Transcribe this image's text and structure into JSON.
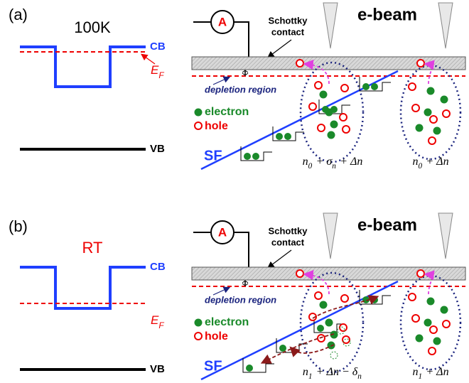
{
  "panels": [
    {
      "label": "(a)",
      "temp": "100K",
      "cb": "CB",
      "ef": {
        "main": "E",
        "sub": "F"
      },
      "vb": "VB",
      "ammeter": "A",
      "contact": [
        "Schottky",
        "contact"
      ],
      "ebeam": "e-beam",
      "depletion": "depletion region",
      "electron": "electron",
      "hole": "hole",
      "sf": "SF",
      "formula_left": [
        {
          "text": "n",
          "sub": "0"
        },
        {
          "text": " + σ",
          "sub": "n"
        },
        {
          "text": " + Δn"
        }
      ],
      "formula_right": [
        {
          "text": "n",
          "sub": "0"
        },
        {
          "text": " + Δn"
        }
      ]
    },
    {
      "label": "(b)",
      "temp": "RT",
      "cb": "CB",
      "ef": {
        "main": "E",
        "sub": "F"
      },
      "vb": "VB",
      "ammeter": "A",
      "contact": [
        "Schottky",
        "contact"
      ],
      "ebeam": "e-beam",
      "depletion": "depletion region",
      "electron": "electron",
      "hole": "hole",
      "sf": "SF",
      "formula_left": [
        {
          "text": "n",
          "sub": "1"
        },
        {
          "text": " + Δn − δ",
          "sub": "n"
        }
      ],
      "formula_right": [
        {
          "text": "n",
          "sub": "1"
        },
        {
          "text": " + Δn"
        }
      ]
    }
  ]
}
